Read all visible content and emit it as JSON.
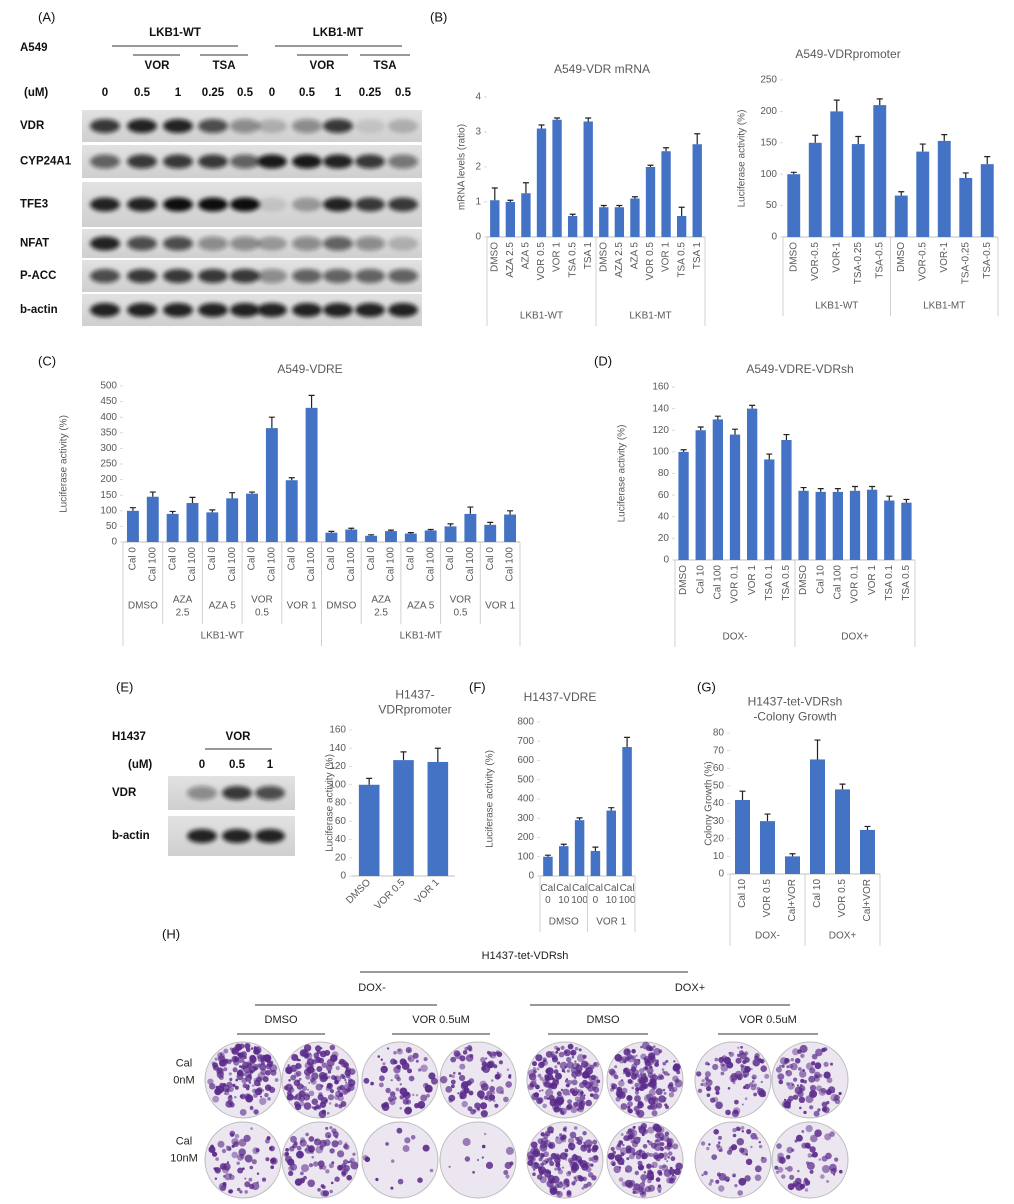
{
  "panel_labels": [
    "(A)",
    "(B)",
    "(C)",
    "(D)",
    "(E)",
    "(F)",
    "(G)",
    "(H)"
  ],
  "blot_a": {
    "cell_line": "A549",
    "groups": [
      {
        "name": "LKB1-WT",
        "treatments": [
          "VOR",
          "TSA"
        ]
      },
      {
        "name": "LKB1-MT",
        "treatments": [
          "VOR",
          "TSA"
        ]
      }
    ],
    "unit": "(uM)",
    "doses": [
      "0",
      "0.5",
      "1",
      "0.25",
      "0.5",
      "0",
      "0.5",
      "1",
      "0.25",
      "0.5"
    ],
    "rows": [
      "VDR",
      "CYP24A1",
      "TFE3",
      "NFAT",
      "P-ACC",
      "b-actin"
    ]
  },
  "blot_e": {
    "cell_line": "H1437",
    "treatment": "VOR",
    "unit": "(uM)",
    "doses": [
      "0",
      "0.5",
      "1"
    ],
    "rows": [
      "VDR",
      "b-actin"
    ]
  },
  "colony": {
    "title": "H1437-tet-VDRsh",
    "groups": [
      {
        "name": "DOX-",
        "columns": [
          "DMSO",
          "VOR 0.5uM"
        ]
      },
      {
        "name": "DOX+",
        "columns": [
          "DMSO",
          "VOR 0.5uM"
        ]
      }
    ],
    "rows": [
      "Cal\n0nM",
      "Cal\n10nM"
    ]
  },
  "chart_data": [
    {
      "type": "bar",
      "title": "A549-VDR mRNA",
      "y_label": "mRNA levels (ratio)",
      "color": "#4472c4",
      "ylim": [
        0,
        4
      ],
      "yticks": [
        0,
        1,
        2,
        3,
        4
      ],
      "groups": [
        {
          "name": "LKB1-WT",
          "categories": [
            "DMSO",
            "AZA 2.5",
            "AZA 5",
            "VOR 0.5",
            "VOR 1",
            "TSA 0.5",
            "TSA 1"
          ],
          "values": [
            1.05,
            1.0,
            1.25,
            3.1,
            3.35,
            0.6,
            3.3
          ],
          "errors": [
            0.35,
            0.05,
            0.3,
            0.1,
            0.05,
            0.05,
            0.1
          ]
        },
        {
          "name": "LKB1-MT",
          "categories": [
            "DMSO",
            "AZA 2.5",
            "AZA 5",
            "VOR 0.5",
            "VOR 1",
            "TSA 0.5",
            "TSA 1"
          ],
          "values": [
            0.85,
            0.85,
            1.1,
            2.0,
            2.45,
            0.6,
            2.65
          ],
          "errors": [
            0.05,
            0.05,
            0.05,
            0.05,
            0.1,
            0.25,
            0.3
          ]
        }
      ]
    },
    {
      "type": "bar",
      "title": "A549-VDRpromoter",
      "y_label": "Luciferase activity (%)",
      "color": "#4472c4",
      "ylim": [
        0,
        250
      ],
      "yticks": [
        0,
        50,
        100,
        150,
        200,
        250
      ],
      "groups": [
        {
          "name": "LKB1-WT",
          "categories": [
            "DMSO",
            "VOR-0.5",
            "VOR-1",
            "TSA-0.25",
            "TSA-0.5"
          ],
          "values": [
            100,
            150,
            200,
            148,
            210
          ],
          "errors": [
            3,
            12,
            18,
            12,
            10
          ]
        },
        {
          "name": "LKB1-MT",
          "categories": [
            "DMSO",
            "VOR-0.5",
            "VOR-1",
            "TSA-0.25",
            "TSA-0.5"
          ],
          "values": [
            66,
            136,
            153,
            94,
            116
          ],
          "errors": [
            6,
            12,
            10,
            8,
            12
          ]
        }
      ]
    },
    {
      "type": "bar",
      "title": "A549-VDRE",
      "y_label": "Luciferase activity (%)",
      "color": "#4472c4",
      "ylim": [
        0,
        500
      ],
      "yticks": [
        0,
        50,
        100,
        150,
        200,
        250,
        300,
        350,
        400,
        450,
        500
      ],
      "groups": [
        {
          "name": "LKB1-WT",
          "subgroups": [
            {
              "name": "DMSO",
              "categories": [
                "Cal 0",
                "Cal 100"
              ],
              "values": [
                100,
                145
              ],
              "errors": [
                10,
                15
              ]
            },
            {
              "name": "AZA\n2.5",
              "categories": [
                "Cal 0",
                "Cal 100"
              ],
              "values": [
                90,
                125
              ],
              "errors": [
                8,
                18
              ]
            },
            {
              "name": "AZA 5",
              "categories": [
                "Cal 0",
                "Cal 100"
              ],
              "values": [
                95,
                140
              ],
              "errors": [
                8,
                18
              ]
            },
            {
              "name": "VOR\n0.5",
              "categories": [
                "Cal 0",
                "Cal 100"
              ],
              "values": [
                155,
                365
              ],
              "errors": [
                5,
                35
              ]
            },
            {
              "name": "VOR 1",
              "categories": [
                "Cal 0",
                "Cal 100"
              ],
              "values": [
                198,
                430
              ],
              "errors": [
                8,
                40
              ]
            }
          ]
        },
        {
          "name": "LKB1-MT",
          "subgroups": [
            {
              "name": "DMSO",
              "categories": [
                "Cal 0",
                "Cal 100"
              ],
              "values": [
                30,
                40
              ],
              "errors": [
                4,
                4
              ]
            },
            {
              "name": "AZA\n2.5",
              "categories": [
                "Cal 0",
                "Cal 100"
              ],
              "values": [
                20,
                35
              ],
              "errors": [
                3,
                3
              ]
            },
            {
              "name": "AZA 5",
              "categories": [
                "Cal 0",
                "Cal 100"
              ],
              "values": [
                27,
                37
              ],
              "errors": [
                3,
                3
              ]
            },
            {
              "name": "VOR\n0.5",
              "categories": [
                "Cal 0",
                "Cal 100"
              ],
              "values": [
                50,
                90
              ],
              "errors": [
                8,
                22
              ]
            },
            {
              "name": "VOR 1",
              "categories": [
                "Cal 0",
                "Cal 100"
              ],
              "values": [
                55,
                88
              ],
              "errors": [
                8,
                12
              ]
            }
          ]
        }
      ]
    },
    {
      "type": "bar",
      "title": "A549-VDRE-VDRsh",
      "y_label": "Luciferase activity (%)",
      "color": "#4472c4",
      "ylim": [
        0,
        160
      ],
      "yticks": [
        0,
        20,
        40,
        60,
        80,
        100,
        120,
        140,
        160
      ],
      "groups": [
        {
          "name": "DOX-",
          "categories": [
            "DMSO",
            "Cal 10",
            "Cal 100",
            "VOR 0.1",
            "VOR 1",
            "TSA 0.1",
            "TSA 0.5"
          ],
          "values": [
            100,
            120,
            130,
            116,
            140,
            93,
            111
          ],
          "errors": [
            2,
            3,
            3,
            5,
            3,
            5,
            5
          ]
        },
        {
          "name": "DOX+",
          "categories": [
            "DMSO",
            "Cal 10",
            "Cal 100",
            "VOR 0.1",
            "VOR 1",
            "TSA 0.1",
            "TSA 0.5"
          ],
          "values": [
            64,
            63,
            63,
            64,
            65,
            55,
            53
          ],
          "errors": [
            3,
            3,
            3,
            4,
            3,
            4,
            3
          ]
        }
      ]
    },
    {
      "type": "bar",
      "title": "H1437-\nVDRpromoter",
      "y_label": "Luciferase activity (%)",
      "color": "#4472c4",
      "ylim": [
        0,
        160
      ],
      "yticks": [
        0,
        20,
        40,
        60,
        80,
        100,
        120,
        140,
        160
      ],
      "categories": [
        "DMSO",
        "VOR 0.5",
        "VOR 1"
      ],
      "values": [
        100,
        127,
        125
      ],
      "errors": [
        7,
        9,
        15
      ]
    },
    {
      "type": "bar",
      "title": "H1437-VDRE",
      "y_label": "Luciferase activity (%)",
      "color": "#4472c4",
      "ylim": [
        0,
        800
      ],
      "yticks": [
        0,
        100,
        200,
        300,
        400,
        500,
        600,
        700,
        800
      ],
      "groups": [
        {
          "name": "DMSO",
          "categories": [
            "Cal\n0",
            "Cal\n10",
            "Cal\n100"
          ],
          "values": [
            100,
            155,
            290
          ],
          "errors": [
            8,
            10,
            12
          ]
        },
        {
          "name": "VOR 1",
          "categories": [
            "Cal\n0",
            "Cal\n10",
            "Cal\n100"
          ],
          "values": [
            130,
            340,
            670
          ],
          "errors": [
            20,
            15,
            50
          ]
        }
      ]
    },
    {
      "type": "bar",
      "title": "H1437-tet-VDRsh\n-Colony Growth",
      "y_label": "Colony Growth (%)",
      "color": "#4472c4",
      "ylim": [
        0,
        80
      ],
      "yticks": [
        0,
        10,
        20,
        30,
        40,
        50,
        60,
        70,
        80
      ],
      "groups": [
        {
          "name": "DOX-",
          "categories": [
            "Cal 10",
            "VOR 0.5",
            "Cal+VOR"
          ],
          "values": [
            42,
            30,
            10
          ],
          "errors": [
            5,
            4,
            1.5
          ]
        },
        {
          "name": "DOX+",
          "categories": [
            "Cal 10",
            "VOR 0.5",
            "Cal+VOR"
          ],
          "values": [
            65,
            48,
            25
          ],
          "errors": [
            11,
            3,
            2
          ]
        }
      ]
    }
  ]
}
